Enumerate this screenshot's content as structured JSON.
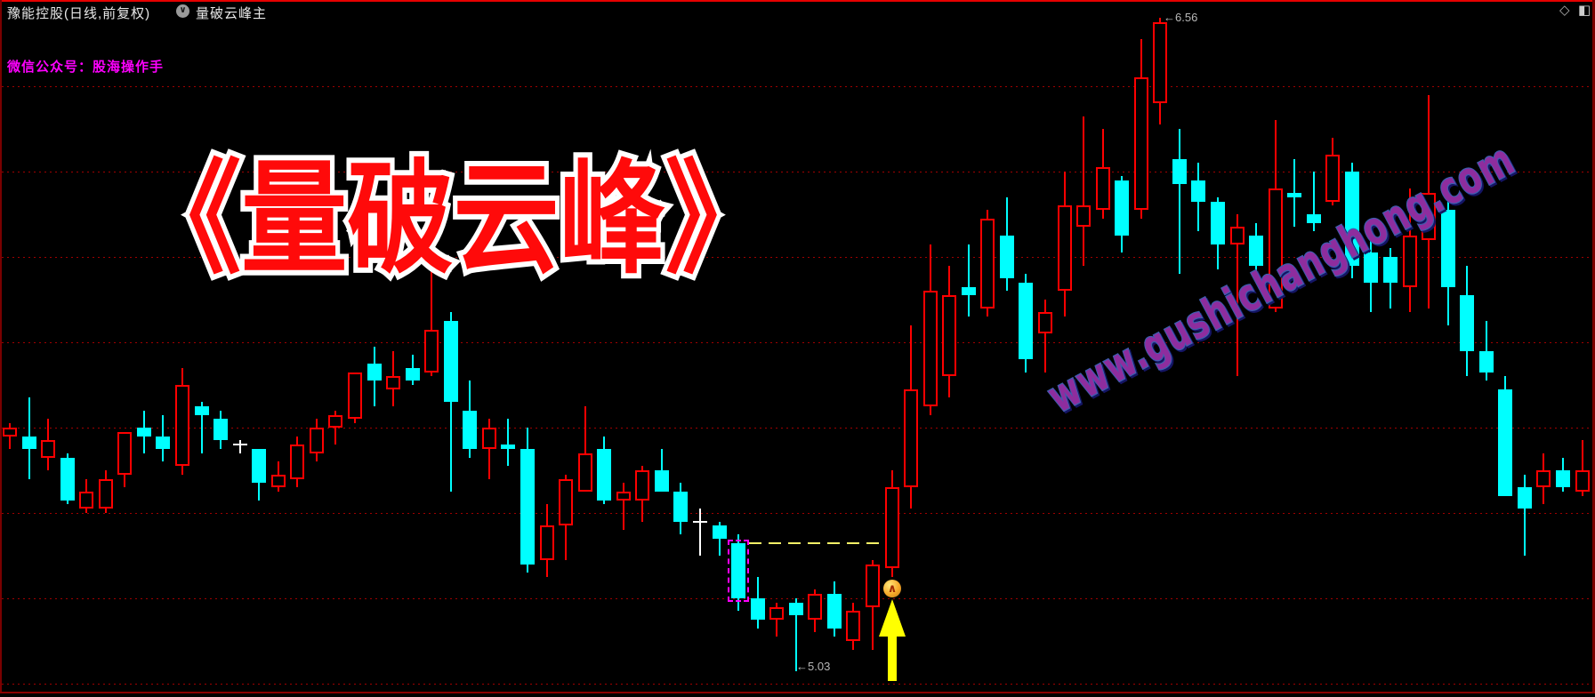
{
  "window": {
    "stock_title": "豫能控股(日线,前复权)",
    "indicator_name": "量破云峰主",
    "dropdown_glyph": "∨",
    "diamond_glyph": "◇",
    "split_glyph": "◧",
    "wechat_label": "微信公众号：股海操作手"
  },
  "overlay": {
    "big_title": "《量破云峰》",
    "watermark": "www.gushichanghong.com",
    "high_label": "←6.56",
    "low_label": "←5.03",
    "signal_glyph": "∧"
  },
  "colors": {
    "up": "#ff0000",
    "down": "#00ffff",
    "doji": "#ffffff",
    "grid": "#a00000",
    "background": "#000000",
    "big_title_fill": "#ff0a0a",
    "big_title_stroke": "#ffffff",
    "wechat": "#ff00ff",
    "watermark_fill": "#8e2d9e",
    "watermark_stroke": "#3c5fb0",
    "signal_box": "#ff00ff",
    "dash_line": "#f5f067",
    "arrow": "#ffff00",
    "label_gray": "#b8b8b8"
  },
  "chart_data": {
    "type": "candlestick",
    "title": "豫能控股 日线 前复权",
    "ylim": [
      4.95,
      6.6
    ],
    "gridline_prices": [
      6.4,
      6.2,
      6.0,
      5.8,
      5.6,
      5.4,
      5.2,
      5.0
    ],
    "high_point": 6.56,
    "low_point": 5.03,
    "high_index": 60,
    "low_index": 41,
    "signal_index": 38,
    "arrow_index": 46,
    "dash_line": {
      "price": 5.33,
      "from_index": 38,
      "to_index": 46
    },
    "candles": [
      {
        "o": 5.58,
        "h": 5.61,
        "l": 5.55,
        "c": 5.6,
        "k": "r"
      },
      {
        "o": 5.58,
        "h": 5.67,
        "l": 5.48,
        "c": 5.55,
        "k": "c"
      },
      {
        "o": 5.53,
        "h": 5.62,
        "l": 5.5,
        "c": 5.57,
        "k": "r"
      },
      {
        "o": 5.53,
        "h": 5.54,
        "l": 5.42,
        "c": 5.43,
        "k": "c"
      },
      {
        "o": 5.41,
        "h": 5.48,
        "l": 5.4,
        "c": 5.45,
        "k": "r"
      },
      {
        "o": 5.41,
        "h": 5.5,
        "l": 5.4,
        "c": 5.48,
        "k": "r"
      },
      {
        "o": 5.49,
        "h": 5.59,
        "l": 5.46,
        "c": 5.59,
        "k": "r"
      },
      {
        "o": 5.6,
        "h": 5.64,
        "l": 5.54,
        "c": 5.58,
        "k": "c"
      },
      {
        "o": 5.58,
        "h": 5.63,
        "l": 5.52,
        "c": 5.55,
        "k": "c"
      },
      {
        "o": 5.51,
        "h": 5.74,
        "l": 5.49,
        "c": 5.7,
        "k": "r"
      },
      {
        "o": 5.65,
        "h": 5.66,
        "l": 5.54,
        "c": 5.63,
        "k": "c"
      },
      {
        "o": 5.62,
        "h": 5.64,
        "l": 5.55,
        "c": 5.57,
        "k": "c"
      },
      {
        "o": 5.56,
        "h": 5.57,
        "l": 5.54,
        "c": 5.56,
        "k": "w"
      },
      {
        "o": 5.55,
        "h": 5.55,
        "l": 5.43,
        "c": 5.47,
        "k": "c"
      },
      {
        "o": 5.46,
        "h": 5.52,
        "l": 5.45,
        "c": 5.49,
        "k": "r"
      },
      {
        "o": 5.48,
        "h": 5.58,
        "l": 5.46,
        "c": 5.56,
        "k": "r"
      },
      {
        "o": 5.54,
        "h": 5.62,
        "l": 5.52,
        "c": 5.6,
        "k": "r"
      },
      {
        "o": 5.6,
        "h": 5.64,
        "l": 5.56,
        "c": 5.63,
        "k": "r"
      },
      {
        "o": 5.62,
        "h": 5.73,
        "l": 5.61,
        "c": 5.73,
        "k": "r"
      },
      {
        "o": 5.75,
        "h": 5.79,
        "l": 5.65,
        "c": 5.71,
        "k": "c"
      },
      {
        "o": 5.69,
        "h": 5.78,
        "l": 5.65,
        "c": 5.72,
        "k": "r"
      },
      {
        "o": 5.74,
        "h": 5.77,
        "l": 5.7,
        "c": 5.71,
        "k": "c"
      },
      {
        "o": 5.73,
        "h": 6.01,
        "l": 5.72,
        "c": 5.83,
        "k": "r"
      },
      {
        "o": 5.85,
        "h": 5.87,
        "l": 5.45,
        "c": 5.66,
        "k": "c"
      },
      {
        "o": 5.64,
        "h": 5.71,
        "l": 5.53,
        "c": 5.55,
        "k": "c"
      },
      {
        "o": 5.55,
        "h": 5.62,
        "l": 5.48,
        "c": 5.6,
        "k": "r"
      },
      {
        "o": 5.56,
        "h": 5.62,
        "l": 5.51,
        "c": 5.55,
        "k": "c"
      },
      {
        "o": 5.55,
        "h": 5.6,
        "l": 5.26,
        "c": 5.28,
        "k": "c"
      },
      {
        "o": 5.29,
        "h": 5.42,
        "l": 5.25,
        "c": 5.37,
        "k": "r"
      },
      {
        "o": 5.37,
        "h": 5.49,
        "l": 5.29,
        "c": 5.48,
        "k": "r"
      },
      {
        "o": 5.45,
        "h": 5.65,
        "l": 5.45,
        "c": 5.54,
        "k": "r"
      },
      {
        "o": 5.55,
        "h": 5.58,
        "l": 5.42,
        "c": 5.43,
        "k": "c"
      },
      {
        "o": 5.43,
        "h": 5.47,
        "l": 5.36,
        "c": 5.45,
        "k": "r"
      },
      {
        "o": 5.43,
        "h": 5.51,
        "l": 5.38,
        "c": 5.5,
        "k": "r"
      },
      {
        "o": 5.5,
        "h": 5.55,
        "l": 5.45,
        "c": 5.45,
        "k": "c"
      },
      {
        "o": 5.45,
        "h": 5.47,
        "l": 5.35,
        "c": 5.38,
        "k": "c"
      },
      {
        "o": 5.38,
        "h": 5.41,
        "l": 5.3,
        "c": 5.38,
        "k": "w"
      },
      {
        "o": 5.37,
        "h": 5.38,
        "l": 5.3,
        "c": 5.34,
        "k": "c"
      },
      {
        "o": 5.33,
        "h": 5.35,
        "l": 5.17,
        "c": 5.2,
        "k": "c"
      },
      {
        "o": 5.2,
        "h": 5.25,
        "l": 5.13,
        "c": 5.15,
        "k": "c"
      },
      {
        "o": 5.15,
        "h": 5.19,
        "l": 5.11,
        "c": 5.18,
        "k": "r"
      },
      {
        "o": 5.19,
        "h": 5.2,
        "l": 5.03,
        "c": 5.16,
        "k": "c"
      },
      {
        "o": 5.15,
        "h": 5.22,
        "l": 5.12,
        "c": 5.21,
        "k": "r"
      },
      {
        "o": 5.21,
        "h": 5.24,
        "l": 5.11,
        "c": 5.13,
        "k": "c"
      },
      {
        "o": 5.1,
        "h": 5.19,
        "l": 5.08,
        "c": 5.17,
        "k": "r"
      },
      {
        "o": 5.18,
        "h": 5.29,
        "l": 5.08,
        "c": 5.28,
        "k": "r"
      },
      {
        "o": 5.27,
        "h": 5.5,
        "l": 5.25,
        "c": 5.46,
        "k": "r"
      },
      {
        "o": 5.46,
        "h": 5.84,
        "l": 5.41,
        "c": 5.69,
        "k": "r"
      },
      {
        "o": 5.65,
        "h": 6.03,
        "l": 5.63,
        "c": 5.92,
        "k": "r"
      },
      {
        "o": 5.72,
        "h": 5.98,
        "l": 5.67,
        "c": 5.91,
        "k": "r"
      },
      {
        "o": 5.93,
        "h": 6.03,
        "l": 5.86,
        "c": 5.91,
        "k": "c"
      },
      {
        "o": 5.88,
        "h": 6.11,
        "l": 5.86,
        "c": 6.09,
        "k": "r"
      },
      {
        "o": 6.05,
        "h": 6.14,
        "l": 5.92,
        "c": 5.95,
        "k": "c"
      },
      {
        "o": 5.94,
        "h": 5.96,
        "l": 5.73,
        "c": 5.76,
        "k": "c"
      },
      {
        "o": 5.82,
        "h": 5.9,
        "l": 5.73,
        "c": 5.87,
        "k": "r"
      },
      {
        "o": 5.92,
        "h": 6.2,
        "l": 5.86,
        "c": 6.12,
        "k": "r"
      },
      {
        "o": 6.07,
        "h": 6.33,
        "l": 5.98,
        "c": 6.12,
        "k": "r"
      },
      {
        "o": 6.11,
        "h": 6.3,
        "l": 6.09,
        "c": 6.21,
        "k": "r"
      },
      {
        "o": 6.18,
        "h": 6.19,
        "l": 6.01,
        "c": 6.05,
        "k": "c"
      },
      {
        "o": 6.11,
        "h": 6.51,
        "l": 6.09,
        "c": 6.42,
        "k": "r"
      },
      {
        "o": 6.36,
        "h": 6.56,
        "l": 6.31,
        "c": 6.55,
        "k": "r"
      },
      {
        "o": 6.23,
        "h": 6.3,
        "l": 5.96,
        "c": 6.17,
        "k": "c"
      },
      {
        "o": 6.18,
        "h": 6.22,
        "l": 6.06,
        "c": 6.13,
        "k": "c"
      },
      {
        "o": 6.13,
        "h": 6.14,
        "l": 5.97,
        "c": 6.03,
        "k": "c"
      },
      {
        "o": 6.03,
        "h": 6.1,
        "l": 5.72,
        "c": 6.07,
        "k": "r"
      },
      {
        "o": 6.05,
        "h": 6.08,
        "l": 5.94,
        "c": 5.98,
        "k": "c"
      },
      {
        "o": 5.88,
        "h": 6.32,
        "l": 5.87,
        "c": 6.16,
        "k": "r"
      },
      {
        "o": 6.15,
        "h": 6.23,
        "l": 6.07,
        "c": 6.14,
        "k": "c"
      },
      {
        "o": 6.1,
        "h": 6.2,
        "l": 6.06,
        "c": 6.08,
        "k": "c"
      },
      {
        "o": 6.13,
        "h": 6.28,
        "l": 6.12,
        "c": 6.24,
        "k": "r"
      },
      {
        "o": 6.2,
        "h": 6.22,
        "l": 5.95,
        "c": 5.98,
        "k": "c"
      },
      {
        "o": 6.01,
        "h": 6.08,
        "l": 5.87,
        "c": 5.94,
        "k": "c"
      },
      {
        "o": 6.0,
        "h": 6.02,
        "l": 5.88,
        "c": 5.94,
        "k": "c"
      },
      {
        "o": 5.93,
        "h": 6.16,
        "l": 5.87,
        "c": 6.05,
        "k": "r"
      },
      {
        "o": 6.04,
        "h": 6.38,
        "l": 5.88,
        "c": 6.15,
        "k": "r"
      },
      {
        "o": 6.11,
        "h": 6.18,
        "l": 5.84,
        "c": 5.93,
        "k": "c"
      },
      {
        "o": 5.91,
        "h": 5.98,
        "l": 5.72,
        "c": 5.78,
        "k": "c"
      },
      {
        "o": 5.78,
        "h": 5.85,
        "l": 5.71,
        "c": 5.73,
        "k": "c"
      },
      {
        "o": 5.69,
        "h": 5.72,
        "l": 5.44,
        "c": 5.44,
        "k": "c"
      },
      {
        "o": 5.46,
        "h": 5.49,
        "l": 5.3,
        "c": 5.41,
        "k": "c"
      },
      {
        "o": 5.46,
        "h": 5.54,
        "l": 5.42,
        "c": 5.5,
        "k": "r"
      },
      {
        "o": 5.5,
        "h": 5.53,
        "l": 5.45,
        "c": 5.46,
        "k": "c"
      },
      {
        "o": 5.45,
        "h": 5.57,
        "l": 5.44,
        "c": 5.5,
        "k": "r"
      }
    ]
  }
}
